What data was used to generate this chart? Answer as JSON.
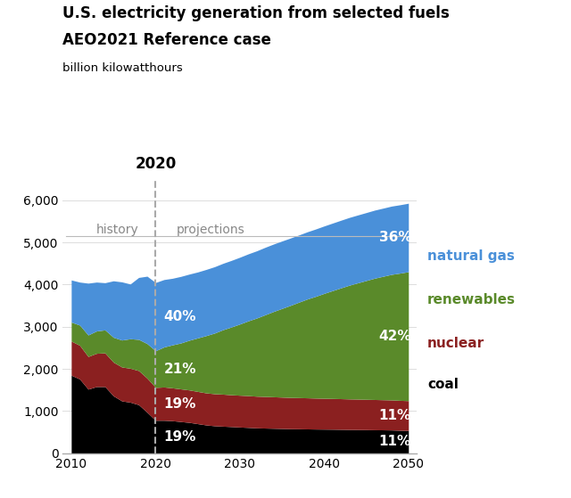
{
  "title_line1": "U.S. electricity generation from selected fuels",
  "title_line2": "AEO2021 Reference case",
  "ylabel": "billion kilowatthours",
  "colors": {
    "coal": "#000000",
    "nuclear": "#8B2020",
    "renewables": "#5A8A2A",
    "natural_gas": "#4A90D9"
  },
  "legend_colors": {
    "natural gas": "#4A90D9",
    "renewables": "#5A8A2A",
    "nuclear": "#8B2020",
    "coal": "#000000"
  },
  "years": [
    2010,
    2011,
    2012,
    2013,
    2014,
    2015,
    2016,
    2017,
    2018,
    2019,
    2020,
    2021,
    2022,
    2023,
    2024,
    2025,
    2026,
    2027,
    2028,
    2029,
    2030,
    2031,
    2032,
    2033,
    2034,
    2035,
    2036,
    2037,
    2038,
    2039,
    2040,
    2041,
    2042,
    2043,
    2044,
    2045,
    2046,
    2047,
    2048,
    2049,
    2050
  ],
  "coal": [
    1850,
    1760,
    1520,
    1580,
    1580,
    1360,
    1240,
    1210,
    1150,
    970,
    780,
    780,
    770,
    750,
    730,
    700,
    670,
    650,
    640,
    630,
    620,
    610,
    600,
    595,
    590,
    585,
    580,
    578,
    575,
    572,
    570,
    568,
    565,
    562,
    560,
    558,
    555,
    553,
    550,
    543,
    538
  ],
  "nuclear": [
    810,
    800,
    775,
    790,
    800,
    800,
    805,
    805,
    810,
    810,
    780,
    790,
    780,
    775,
    770,
    765,
    760,
    760,
    760,
    755,
    755,
    755,
    752,
    750,
    748,
    745,
    742,
    740,
    738,
    735,
    732,
    730,
    728,
    725,
    723,
    720,
    718,
    715,
    713,
    710,
    708
  ],
  "renewables": [
    450,
    480,
    510,
    530,
    545,
    590,
    640,
    700,
    740,
    820,
    870,
    950,
    1020,
    1090,
    1180,
    1270,
    1360,
    1440,
    1530,
    1610,
    1690,
    1775,
    1855,
    1940,
    2025,
    2105,
    2185,
    2265,
    2345,
    2415,
    2490,
    2560,
    2630,
    2700,
    2760,
    2820,
    2880,
    2930,
    2980,
    3020,
    3060
  ],
  "natural_gas": [
    1000,
    1020,
    1230,
    1160,
    1120,
    1340,
    1380,
    1300,
    1470,
    1600,
    1620,
    1600,
    1580,
    1580,
    1570,
    1565,
    1570,
    1575,
    1575,
    1580,
    1585,
    1590,
    1595,
    1600,
    1600,
    1600,
    1598,
    1595,
    1595,
    1598,
    1600,
    1602,
    1605,
    1608,
    1610,
    1612,
    1615,
    1617,
    1620,
    1622,
    1625
  ],
  "divider_year": 2020,
  "ylim": [
    0,
    6500
  ],
  "yticks": [
    0,
    1000,
    2000,
    3000,
    4000,
    5000,
    6000
  ],
  "xlim": [
    2009,
    2051
  ],
  "history_label": "history",
  "projections_label": "projections"
}
